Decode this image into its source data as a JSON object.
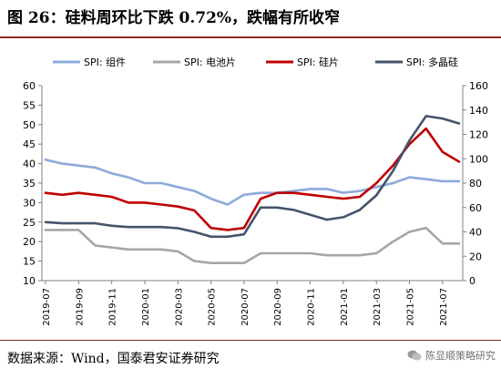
{
  "title": "图 26：硅料周环比下跌 0.72%，跌幅有所收窄",
  "source": "数据来源：Wind，国泰君安证券研究",
  "watermark": "陈显顺策略研究",
  "watermark_icon": "wechat-icon",
  "chart_data": {
    "type": "line",
    "x": [
      "2019-07",
      "2019-08",
      "2019-09",
      "2019-10",
      "2019-11",
      "2019-12",
      "2020-01",
      "2020-02",
      "2020-03",
      "2020-04",
      "2020-05",
      "2020-06",
      "2020-07",
      "2020-08",
      "2020-09",
      "2020-10",
      "2020-11",
      "2020-12",
      "2021-01",
      "2021-02",
      "2021-03",
      "2021-04",
      "2021-05",
      "2021-06",
      "2021-07",
      "2021-08"
    ],
    "x_ticks": [
      "2019-07",
      "2019-09",
      "2019-11",
      "2020-01",
      "2020-03",
      "2020-05",
      "2020-07",
      "2020-09",
      "2020-11",
      "2021-01",
      "2021-03",
      "2021-05",
      "2021-07"
    ],
    "y_left": {
      "ylim": [
        10,
        60
      ],
      "ticks": [
        10,
        15,
        20,
        25,
        30,
        35,
        40,
        45,
        50,
        55,
        60
      ]
    },
    "y_right": {
      "ylim": [
        0,
        160
      ],
      "ticks": [
        0,
        20,
        40,
        60,
        80,
        100,
        120,
        140,
        160
      ]
    },
    "grid": false,
    "legend_position": "top",
    "series": [
      {
        "name": "SPI: 组件",
        "axis": "left",
        "color": "#8eaadb",
        "values": [
          41.0,
          40.0,
          39.5,
          39.0,
          37.5,
          36.5,
          35.0,
          35.0,
          34.0,
          33.0,
          31.0,
          29.5,
          32.0,
          32.5,
          32.5,
          33.0,
          33.5,
          33.5,
          32.5,
          33.0,
          34.0,
          35.0,
          36.5,
          36.0,
          35.5,
          35.5
        ]
      },
      {
        "name": "SPI: 电池片",
        "axis": "left",
        "color": "#a6a6a6",
        "values": [
          23.0,
          23.0,
          23.0,
          19.0,
          18.5,
          18.0,
          18.0,
          18.0,
          17.5,
          15.0,
          14.5,
          14.5,
          14.5,
          17.0,
          17.0,
          17.0,
          17.0,
          16.5,
          16.5,
          16.5,
          17.0,
          20.0,
          22.5,
          23.5,
          19.5,
          19.5
        ]
      },
      {
        "name": "SPI: 硅片",
        "axis": "left",
        "color": "#c00000",
        "values": [
          32.5,
          32.0,
          32.5,
          32.0,
          31.5,
          30.0,
          30.0,
          29.5,
          29.0,
          28.0,
          23.5,
          23.0,
          23.5,
          31.0,
          32.5,
          32.5,
          32.0,
          31.5,
          31.0,
          31.5,
          35.0,
          39.5,
          45.0,
          49.0,
          43.0,
          40.5
        ]
      },
      {
        "name": "SPI: 多晶硅",
        "axis": "right",
        "color": "#44546a",
        "values": [
          48,
          47,
          47,
          47,
          45,
          44,
          44,
          44,
          43,
          40,
          36,
          36,
          38,
          60,
          60,
          58,
          54,
          50,
          52,
          58,
          70,
          90,
          115,
          135,
          133,
          129
        ]
      }
    ]
  }
}
